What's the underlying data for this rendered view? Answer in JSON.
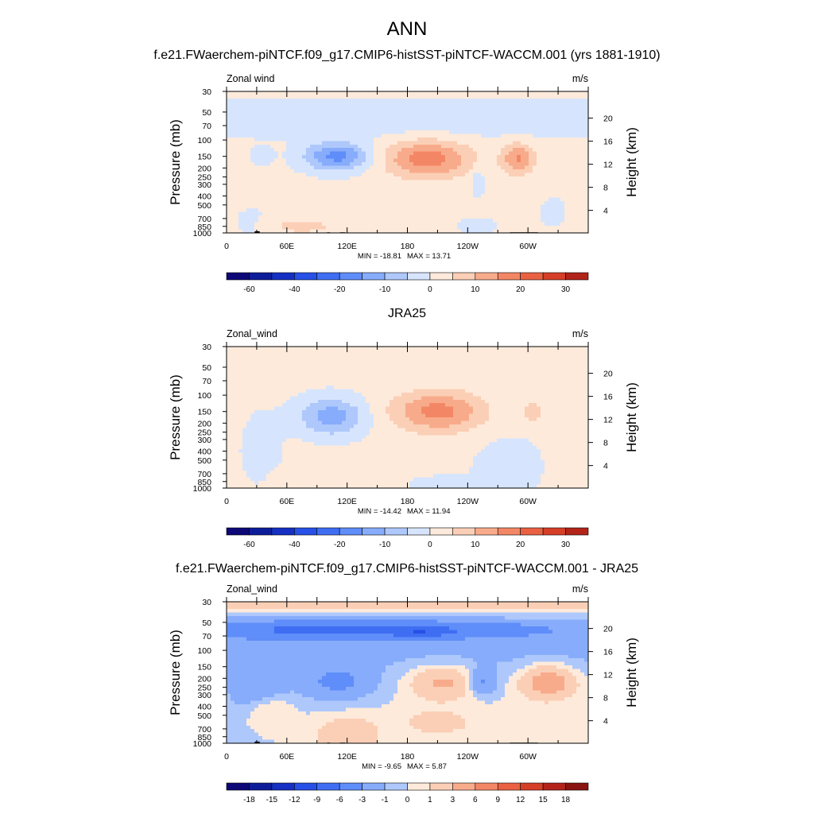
{
  "figure": {
    "title": "ANN"
  },
  "colors": {
    "diverging_palette": [
      "#0c0877",
      "#0d1d9a",
      "#1530c2",
      "#2650e6",
      "#3f6ef3",
      "#5f8df9",
      "#87acfb",
      "#aec8fc",
      "#d6e5fd",
      "#feeadb",
      "#fbcfb6",
      "#f8ab8b",
      "#f38765",
      "#ea6142",
      "#d63f27",
      "#b22419",
      "#8a1411"
    ],
    "land_mask": "#000000",
    "frame": "#000000"
  },
  "chart_data": [
    {
      "type": "contour",
      "title": "f.e21.FWaerchem-piNTCF.f09_g17.CMIP6-histSST-piNTCF-WACCM.001 (yrs 1881-1910)",
      "variable_label": "Zonal wind",
      "units_label": "m/s",
      "ylabel": "Pressure (mb)",
      "ylabel_right": "Height (km)",
      "x_ticks": [
        "0",
        "60E",
        "120E",
        "180",
        "120W",
        "60W"
      ],
      "y_ticks": [
        "30",
        "50",
        "70",
        "100",
        "150",
        "200",
        "250",
        "300",
        "400",
        "500",
        "700",
        "850",
        "1000"
      ],
      "height_ticks": [
        "20",
        "16",
        "12",
        "8",
        "4"
      ],
      "min_label": "MIN = -18.81",
      "max_label": "MAX =  13.71",
      "min": -18.81,
      "max": 13.71,
      "colorbar_levels": [
        "-60",
        "-40",
        "-20",
        "-10",
        "0",
        "10",
        "20",
        "30"
      ]
    },
    {
      "type": "contour",
      "title": "JRA25",
      "variable_label": "Zonal_wind",
      "units_label": "m/s",
      "ylabel": "Pressure (mb)",
      "ylabel_right": "Height (km)",
      "x_ticks": [
        "0",
        "60E",
        "120E",
        "180",
        "120W",
        "60W"
      ],
      "y_ticks": [
        "30",
        "50",
        "70",
        "100",
        "150",
        "200",
        "250",
        "300",
        "400",
        "500",
        "700",
        "850",
        "1000"
      ],
      "height_ticks": [
        "20",
        "16",
        "12",
        "8",
        "4"
      ],
      "min_label": "MIN = -14.42",
      "max_label": "MAX =  11.94",
      "min": -14.42,
      "max": 11.94,
      "colorbar_levels": [
        "-60",
        "-40",
        "-20",
        "-10",
        "0",
        "10",
        "20",
        "30"
      ]
    },
    {
      "type": "contour",
      "title": "f.e21.FWaerchem-piNTCF.f09_g17.CMIP6-histSST-piNTCF-WACCM.001 - JRA25",
      "variable_label": "Zonal_wind",
      "units_label": "m/s",
      "ylabel": "Pressure (mb)",
      "ylabel_right": "Height (km)",
      "x_ticks": [
        "0",
        "60E",
        "120E",
        "180",
        "120W",
        "60W"
      ],
      "y_ticks": [
        "30",
        "50",
        "70",
        "100",
        "150",
        "200",
        "250",
        "300",
        "400",
        "500",
        "700",
        "850",
        "1000"
      ],
      "height_ticks": [
        "20",
        "16",
        "12",
        "8",
        "4"
      ],
      "min_label": "MIN =  -9.65",
      "max_label": "MAX =   5.87",
      "min": -9.65,
      "max": 5.87,
      "colorbar_levels": [
        "-18",
        "-15",
        "-12",
        "-9",
        "-6",
        "-3",
        "-1",
        "0",
        "1",
        "3",
        "6",
        "9",
        "12",
        "15",
        "18"
      ]
    }
  ]
}
